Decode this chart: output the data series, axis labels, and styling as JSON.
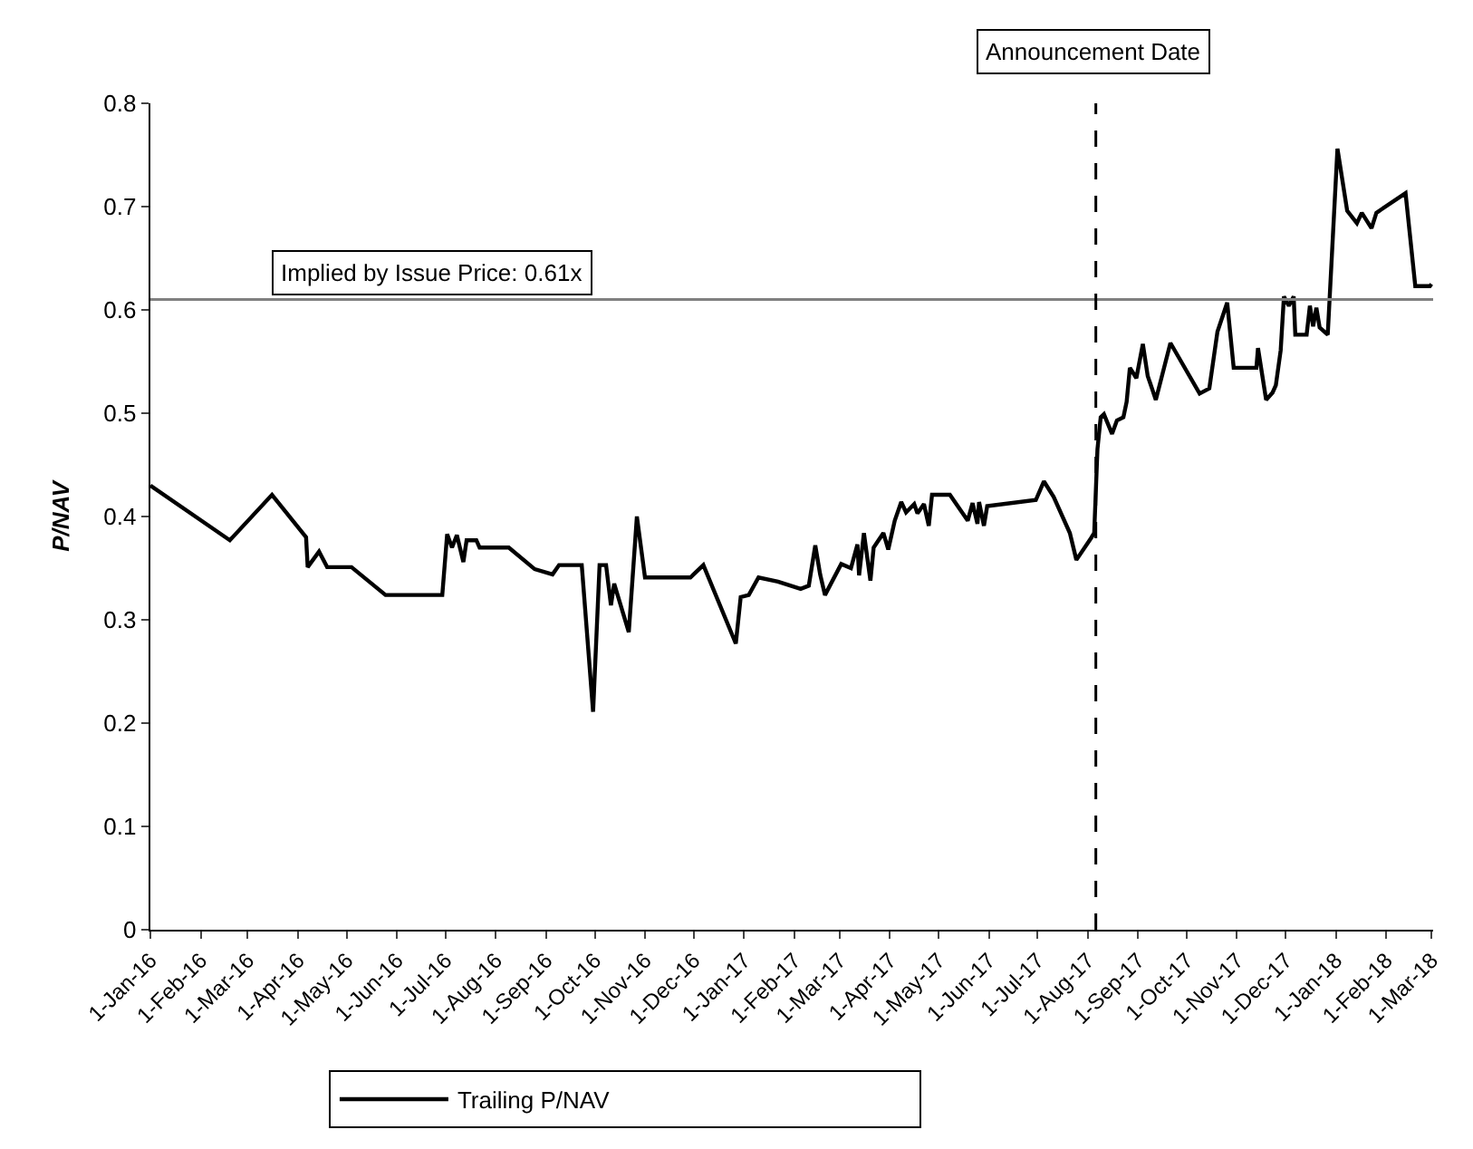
{
  "chart_data": {
    "type": "line",
    "ylabel": "P/NAV",
    "x": [
      "2016-01-01",
      "2016-02-19",
      "2016-03-16",
      "2016-04-06",
      "2016-04-07",
      "2016-04-14",
      "2016-04-19",
      "2016-05-04",
      "2016-05-25",
      "2016-06-29",
      "2016-07-02",
      "2016-07-05",
      "2016-07-08",
      "2016-07-12",
      "2016-07-14",
      "2016-07-20",
      "2016-07-22",
      "2016-08-09",
      "2016-08-25",
      "2016-09-05",
      "2016-09-09",
      "2016-09-23",
      "2016-09-30",
      "2016-10-04",
      "2016-10-08",
      "2016-10-11",
      "2016-10-13",
      "2016-10-22",
      "2016-10-27",
      "2016-11-01",
      "2016-11-29",
      "2016-12-07",
      "2016-12-27",
      "2016-12-30",
      "2017-01-04",
      "2017-01-10",
      "2017-01-22",
      "2017-02-05",
      "2017-02-10",
      "2017-02-14",
      "2017-02-17",
      "2017-02-20",
      "2017-03-02",
      "2017-03-08",
      "2017-03-12",
      "2017-03-13",
      "2017-03-16",
      "2017-03-20",
      "2017-03-22",
      "2017-03-28",
      "2017-03-31",
      "2017-04-04",
      "2017-04-08",
      "2017-04-11",
      "2017-04-16",
      "2017-04-18",
      "2017-04-22",
      "2017-04-25",
      "2017-04-27",
      "2017-05-08",
      "2017-05-19",
      "2017-05-22",
      "2017-05-25",
      "2017-05-26",
      "2017-05-29",
      "2017-05-31",
      "2017-06-30",
      "2017-07-05",
      "2017-07-11",
      "2017-07-21",
      "2017-07-25",
      "2017-08-03",
      "2017-08-05",
      "2017-08-07",
      "2017-08-09",
      "2017-08-11",
      "2017-08-16",
      "2017-08-19",
      "2017-08-23",
      "2017-08-25",
      "2017-08-27",
      "2017-08-31",
      "2017-09-04",
      "2017-09-07",
      "2017-09-12",
      "2017-09-21",
      "2017-10-09",
      "2017-10-15",
      "2017-10-20",
      "2017-10-26",
      "2017-10-30",
      "2017-11-13",
      "2017-11-14",
      "2017-11-19",
      "2017-11-23",
      "2017-11-25",
      "2017-11-28",
      "2017-11-30",
      "2017-12-03",
      "2017-12-06",
      "2017-12-07",
      "2017-12-14",
      "2017-12-16",
      "2017-12-18",
      "2017-12-20",
      "2017-12-22",
      "2017-12-27",
      "2018-01-02",
      "2018-01-08",
      "2018-01-14",
      "2018-01-17",
      "2018-01-23",
      "2018-01-26",
      "2018-02-13",
      "2018-02-19",
      "2018-02-28",
      "2018-03-01"
    ],
    "series": [
      {
        "name": "Trailing P/NAV",
        "color": "#000000",
        "values": [
          0.43,
          0.377,
          0.421,
          0.38,
          0.351,
          0.366,
          0.351,
          0.351,
          0.324,
          0.324,
          0.383,
          0.37,
          0.382,
          0.356,
          0.377,
          0.377,
          0.37,
          0.37,
          0.349,
          0.344,
          0.353,
          0.353,
          0.211,
          0.353,
          0.353,
          0.314,
          0.335,
          0.288,
          0.4,
          0.341,
          0.341,
          0.353,
          0.277,
          0.322,
          0.324,
          0.341,
          0.337,
          0.33,
          0.333,
          0.372,
          0.344,
          0.324,
          0.354,
          0.35,
          0.373,
          0.343,
          0.384,
          0.338,
          0.37,
          0.384,
          0.368,
          0.396,
          0.414,
          0.404,
          0.412,
          0.403,
          0.412,
          0.391,
          0.421,
          0.421,
          0.396,
          0.413,
          0.393,
          0.414,
          0.391,
          0.41,
          0.416,
          0.434,
          0.419,
          0.384,
          0.358,
          0.379,
          0.384,
          0.465,
          0.496,
          0.499,
          0.48,
          0.493,
          0.496,
          0.511,
          0.544,
          0.534,
          0.567,
          0.536,
          0.513,
          0.568,
          0.519,
          0.524,
          0.579,
          0.607,
          0.544,
          0.544,
          0.563,
          0.513,
          0.52,
          0.527,
          0.561,
          0.613,
          0.604,
          0.613,
          0.576,
          0.576,
          0.604,
          0.584,
          0.602,
          0.583,
          0.576,
          0.756,
          0.696,
          0.684,
          0.694,
          0.679,
          0.694,
          0.713,
          0.623,
          0.623,
          0.625
        ]
      }
    ],
    "xlim": [
      "2016-01-01",
      "2018-03-02"
    ],
    "xticks": [
      {
        "value": "2016-01-01",
        "label": "1-Jan-16"
      },
      {
        "value": "2016-02-01",
        "label": "1-Feb-16"
      },
      {
        "value": "2016-03-01",
        "label": "1-Mar-16"
      },
      {
        "value": "2016-04-01",
        "label": "1-Apr-16"
      },
      {
        "value": "2016-05-01",
        "label": "1-May-16"
      },
      {
        "value": "2016-06-01",
        "label": "1-Jun-16"
      },
      {
        "value": "2016-07-01",
        "label": "1-Jul-16"
      },
      {
        "value": "2016-08-01",
        "label": "1-Aug-16"
      },
      {
        "value": "2016-09-01",
        "label": "1-Sep-16"
      },
      {
        "value": "2016-10-01",
        "label": "1-Oct-16"
      },
      {
        "value": "2016-11-01",
        "label": "1-Nov-16"
      },
      {
        "value": "2016-12-01",
        "label": "1-Dec-16"
      },
      {
        "value": "2017-01-01",
        "label": "1-Jan-17"
      },
      {
        "value": "2017-02-01",
        "label": "1-Feb-17"
      },
      {
        "value": "2017-03-01",
        "label": "1-Mar-17"
      },
      {
        "value": "2017-04-01",
        "label": "1-Apr-17"
      },
      {
        "value": "2017-05-01",
        "label": "1-May-17"
      },
      {
        "value": "2017-06-01",
        "label": "1-Jun-17"
      },
      {
        "value": "2017-07-01",
        "label": "1-Jul-17"
      },
      {
        "value": "2017-08-01",
        "label": "1-Aug-17"
      },
      {
        "value": "2017-09-01",
        "label": "1-Sep-17"
      },
      {
        "value": "2017-10-01",
        "label": "1-Oct-17"
      },
      {
        "value": "2017-11-01",
        "label": "1-Nov-17"
      },
      {
        "value": "2017-12-01",
        "label": "1-Dec-17"
      },
      {
        "value": "2018-01-01",
        "label": "1-Jan-18"
      },
      {
        "value": "2018-02-01",
        "label": "1-Feb-18"
      },
      {
        "value": "2018-03-01",
        "label": "1-Mar-18"
      }
    ],
    "ylim": [
      0,
      0.8
    ],
    "yticks": [
      0,
      0.1,
      0.2,
      0.3,
      0.4,
      0.5,
      0.6,
      0.7,
      0.8
    ],
    "ref_lines": [
      {
        "axis": "y",
        "value": 0.61,
        "label": "Implied by Issue Price: 0.61x",
        "color": "#808080",
        "line_style": "solid"
      },
      {
        "axis": "x",
        "value": "2017-08-06",
        "label": "Announcement Date",
        "color": "#000000",
        "line_style": "dashed"
      }
    ],
    "grid": false,
    "legend": "bottom",
    "marker": "none",
    "line_style": "solid"
  }
}
